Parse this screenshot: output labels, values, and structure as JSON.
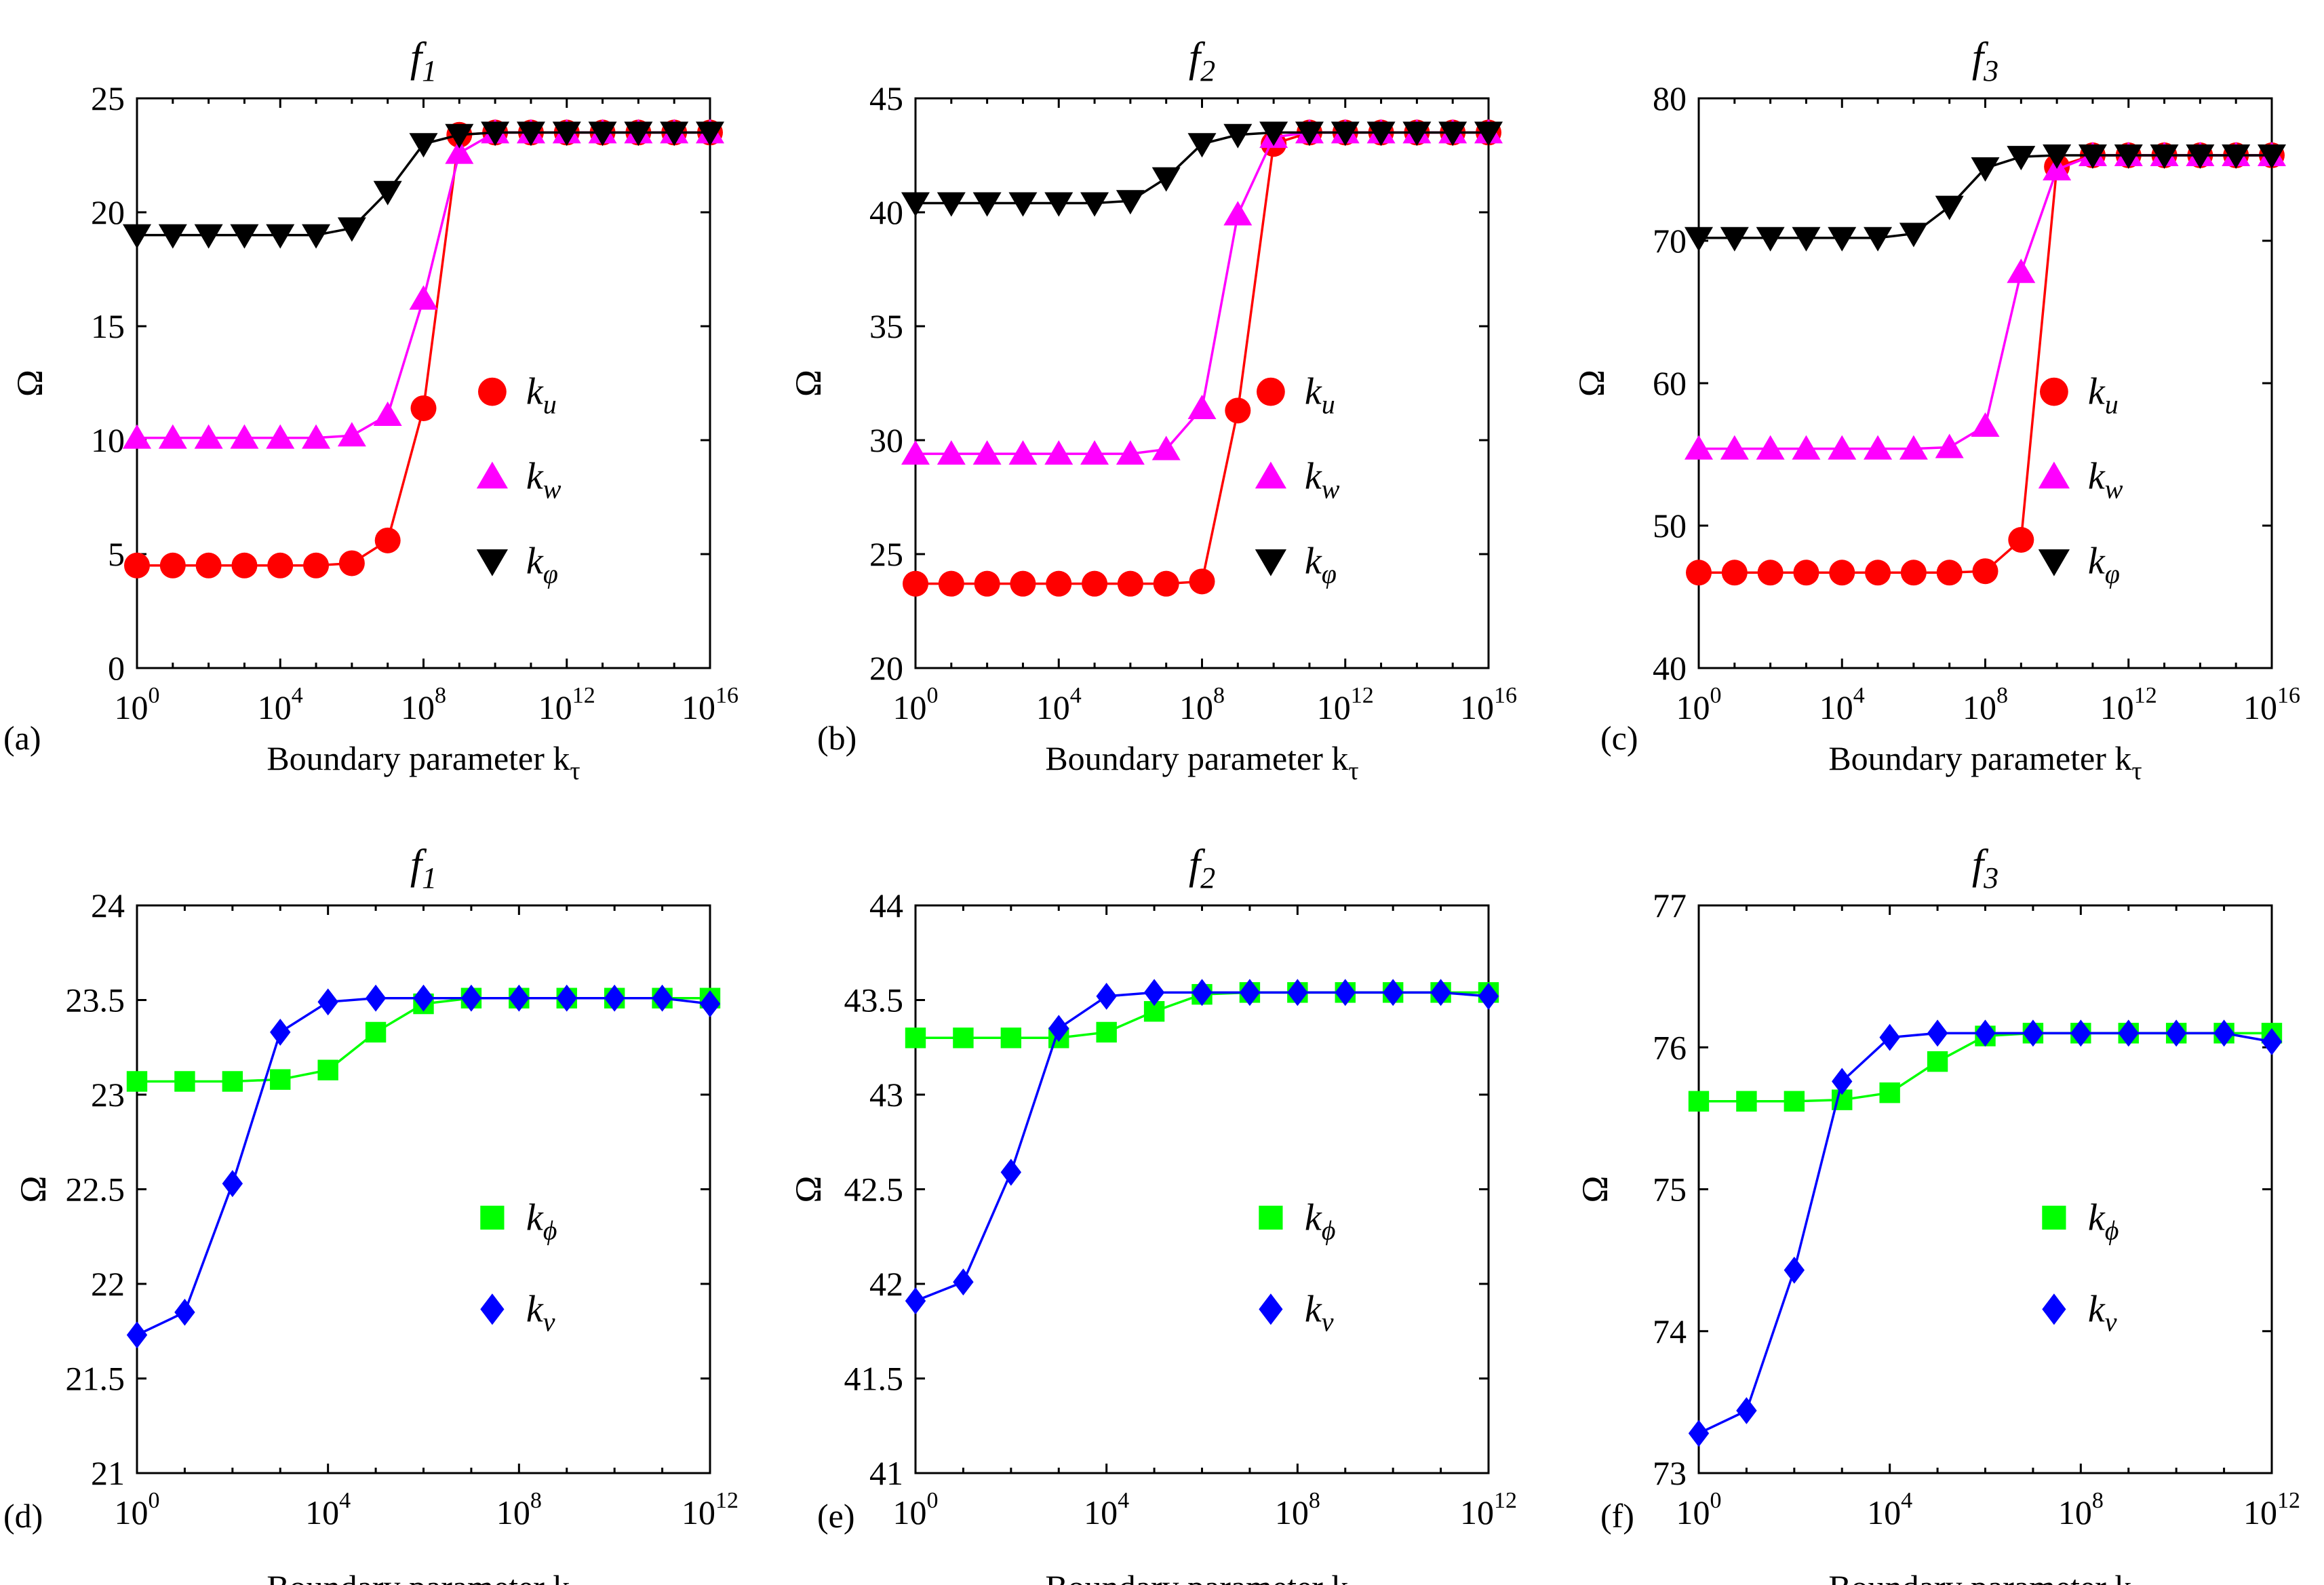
{
  "chart_data": [
    {
      "type": "line",
      "panel_label": "(a)",
      "title": "f",
      "title_sub": "1",
      "xlabel": "Boundary parameter k",
      "xlabel_sub": "τ",
      "ylabel": "Ω",
      "xscale": "log",
      "xlim_exp": [
        0,
        16
      ],
      "ylim": [
        0,
        25
      ],
      "xticks": [
        0,
        4,
        8,
        12,
        16
      ],
      "yticks": [
        0,
        5,
        10,
        15,
        20,
        25
      ],
      "legend_position": "center-right",
      "series": [
        {
          "name": "k",
          "sub": "u",
          "color": "#ff0000",
          "marker": "circle",
          "x_exp": [
            0,
            1,
            2,
            3,
            4,
            5,
            6,
            7,
            8,
            9,
            10,
            11,
            12,
            13,
            14,
            15,
            16
          ],
          "values": [
            4.5,
            4.5,
            4.5,
            4.5,
            4.5,
            4.5,
            4.6,
            5.6,
            11.4,
            23.4,
            23.5,
            23.5,
            23.5,
            23.5,
            23.5,
            23.5,
            23.5
          ]
        },
        {
          "name": "k",
          "sub": "w",
          "color": "#ff00ff",
          "marker": "triangle-up",
          "x_exp": [
            0,
            1,
            2,
            3,
            4,
            5,
            6,
            7,
            8,
            9,
            10,
            11,
            12,
            13,
            14,
            15,
            16
          ],
          "values": [
            10.1,
            10.1,
            10.1,
            10.1,
            10.1,
            10.1,
            10.2,
            11.1,
            16.2,
            22.6,
            23.5,
            23.5,
            23.5,
            23.5,
            23.5,
            23.5,
            23.5
          ]
        },
        {
          "name": "k",
          "sub": "φ",
          "color": "#000000",
          "marker": "triangle-down",
          "x_exp": [
            0,
            1,
            2,
            3,
            4,
            5,
            6,
            7,
            8,
            9,
            10,
            11,
            12,
            13,
            14,
            15,
            16
          ],
          "values": [
            19.0,
            19.0,
            19.0,
            19.0,
            19.0,
            19.0,
            19.3,
            20.9,
            23.0,
            23.4,
            23.5,
            23.5,
            23.5,
            23.5,
            23.5,
            23.5,
            23.5
          ]
        }
      ]
    },
    {
      "type": "line",
      "panel_label": "(b)",
      "title": "f",
      "title_sub": "2",
      "xlabel": "Boundary parameter k",
      "xlabel_sub": "τ",
      "ylabel": "Ω",
      "xscale": "log",
      "xlim_exp": [
        0,
        16
      ],
      "ylim": [
        20,
        45
      ],
      "xticks": [
        0,
        4,
        8,
        12,
        16
      ],
      "yticks": [
        20,
        25,
        30,
        35,
        40,
        45
      ],
      "legend_position": "center-right",
      "series": [
        {
          "name": "k",
          "sub": "u",
          "color": "#ff0000",
          "marker": "circle",
          "x_exp": [
            0,
            1,
            2,
            3,
            4,
            5,
            6,
            7,
            8,
            9,
            10,
            11,
            12,
            13,
            14,
            15,
            16
          ],
          "values": [
            23.7,
            23.7,
            23.7,
            23.7,
            23.7,
            23.7,
            23.7,
            23.7,
            23.8,
            31.3,
            43.0,
            43.5,
            43.5,
            43.5,
            43.5,
            43.5,
            43.5
          ]
        },
        {
          "name": "k",
          "sub": "w",
          "color": "#ff00ff",
          "marker": "triangle-up",
          "x_exp": [
            0,
            1,
            2,
            3,
            4,
            5,
            6,
            7,
            8,
            9,
            10,
            11,
            12,
            13,
            14,
            15,
            16
          ],
          "values": [
            29.4,
            29.4,
            29.4,
            29.4,
            29.4,
            29.4,
            29.4,
            29.6,
            31.4,
            39.9,
            43.3,
            43.5,
            43.5,
            43.5,
            43.5,
            43.5,
            43.5
          ]
        },
        {
          "name": "k",
          "sub": "φ",
          "color": "#000000",
          "marker": "triangle-down",
          "x_exp": [
            0,
            1,
            2,
            3,
            4,
            5,
            6,
            7,
            8,
            9,
            10,
            11,
            12,
            13,
            14,
            15,
            16
          ],
          "values": [
            40.4,
            40.4,
            40.4,
            40.4,
            40.4,
            40.4,
            40.5,
            41.5,
            43.0,
            43.4,
            43.5,
            43.5,
            43.5,
            43.5,
            43.5,
            43.5,
            43.5
          ]
        }
      ]
    },
    {
      "type": "line",
      "panel_label": "(c)",
      "title": "f",
      "title_sub": "3",
      "xlabel": "Boundary parameter k",
      "xlabel_sub": "τ",
      "ylabel": "Ω",
      "xscale": "log",
      "xlim_exp": [
        0,
        16
      ],
      "ylim": [
        40,
        80
      ],
      "xticks": [
        0,
        4,
        8,
        12,
        16
      ],
      "yticks": [
        40,
        50,
        60,
        70,
        80
      ],
      "legend_position": "center-right",
      "series": [
        {
          "name": "k",
          "sub": "u",
          "color": "#ff0000",
          "marker": "circle",
          "x_exp": [
            0,
            1,
            2,
            3,
            4,
            5,
            6,
            7,
            8,
            9,
            10,
            11,
            12,
            13,
            14,
            15,
            16
          ],
          "values": [
            46.7,
            46.7,
            46.7,
            46.7,
            46.7,
            46.7,
            46.7,
            46.7,
            46.8,
            49.0,
            75.2,
            76.0,
            76.0,
            76.0,
            76.0,
            76.0,
            76.0
          ]
        },
        {
          "name": "k",
          "sub": "w",
          "color": "#ff00ff",
          "marker": "triangle-up",
          "x_exp": [
            0,
            1,
            2,
            3,
            4,
            5,
            6,
            7,
            8,
            9,
            10,
            11,
            12,
            13,
            14,
            15,
            16
          ],
          "values": [
            55.4,
            55.4,
            55.4,
            55.4,
            55.4,
            55.4,
            55.4,
            55.5,
            57.0,
            67.8,
            75.0,
            76.0,
            76.0,
            76.0,
            76.0,
            76.0,
            76.0
          ]
        },
        {
          "name": "k",
          "sub": "φ",
          "color": "#000000",
          "marker": "triangle-down",
          "x_exp": [
            0,
            1,
            2,
            3,
            4,
            5,
            6,
            7,
            8,
            9,
            10,
            11,
            12,
            13,
            14,
            15,
            16
          ],
          "values": [
            70.2,
            70.2,
            70.2,
            70.2,
            70.2,
            70.2,
            70.5,
            72.4,
            75.1,
            75.9,
            76.0,
            76.0,
            76.0,
            76.0,
            76.0,
            76.0,
            76.0
          ]
        }
      ]
    },
    {
      "type": "line",
      "panel_label": "(d)",
      "title": "f",
      "title_sub": "1",
      "xlabel": "Boundary parameter k",
      "xlabel_sub": "τ",
      "ylabel": "Ω",
      "xscale": "log",
      "xlim_exp": [
        0,
        12
      ],
      "ylim": [
        21,
        24
      ],
      "xticks": [
        0,
        4,
        8,
        12
      ],
      "yticks": [
        21,
        21.5,
        22,
        22.5,
        23,
        23.5,
        24
      ],
      "legend_position": "center-right",
      "series": [
        {
          "name": "k",
          "sub": "ϕ",
          "color": "#00ff00",
          "marker": "square",
          "x_exp": [
            0,
            1,
            2,
            3,
            4,
            5,
            6,
            7,
            8,
            9,
            10,
            11,
            12
          ],
          "values": [
            23.07,
            23.07,
            23.07,
            23.08,
            23.13,
            23.33,
            23.48,
            23.51,
            23.51,
            23.51,
            23.51,
            23.51,
            23.51
          ]
        },
        {
          "name": "k",
          "sub": "ν",
          "color": "#0000ff",
          "marker": "diamond",
          "x_exp": [
            0,
            1,
            2,
            3,
            4,
            5,
            6,
            7,
            8,
            9,
            10,
            11,
            12
          ],
          "values": [
            21.73,
            21.85,
            22.53,
            23.33,
            23.49,
            23.51,
            23.51,
            23.51,
            23.51,
            23.51,
            23.51,
            23.51,
            23.48
          ]
        }
      ]
    },
    {
      "type": "line",
      "panel_label": "(e)",
      "title": "f",
      "title_sub": "2",
      "xlabel": "Boundary parameter k",
      "xlabel_sub": "τ",
      "ylabel": "Ω",
      "xscale": "log",
      "xlim_exp": [
        0,
        12
      ],
      "ylim": [
        41,
        44
      ],
      "xticks": [
        0,
        4,
        8,
        12
      ],
      "yticks": [
        41,
        41.5,
        42,
        42.5,
        43,
        43.5,
        44
      ],
      "legend_position": "center-right",
      "series": [
        {
          "name": "k",
          "sub": "ϕ",
          "color": "#00ff00",
          "marker": "square",
          "x_exp": [
            0,
            1,
            2,
            3,
            4,
            5,
            6,
            7,
            8,
            9,
            10,
            11,
            12
          ],
          "values": [
            43.3,
            43.3,
            43.3,
            43.3,
            43.33,
            43.44,
            43.53,
            43.54,
            43.54,
            43.54,
            43.54,
            43.54,
            43.54
          ]
        },
        {
          "name": "k",
          "sub": "ν",
          "color": "#0000ff",
          "marker": "diamond",
          "x_exp": [
            0,
            1,
            2,
            3,
            4,
            5,
            6,
            7,
            8,
            9,
            10,
            11,
            12
          ],
          "values": [
            41.91,
            42.01,
            42.59,
            43.35,
            43.52,
            43.54,
            43.54,
            43.54,
            43.54,
            43.54,
            43.54,
            43.54,
            43.52
          ]
        }
      ]
    },
    {
      "type": "line",
      "panel_label": "(f)",
      "title": "f",
      "title_sub": "3",
      "xlabel": "Boundary parameter k",
      "xlabel_sub": "τ",
      "ylabel": "Ω",
      "xscale": "log",
      "xlim_exp": [
        0,
        12
      ],
      "ylim": [
        73,
        77
      ],
      "xticks": [
        0,
        4,
        8,
        12
      ],
      "yticks": [
        73,
        74,
        75,
        76,
        77
      ],
      "legend_position": "center-right",
      "series": [
        {
          "name": "k",
          "sub": "ϕ",
          "color": "#00ff00",
          "marker": "square",
          "x_exp": [
            0,
            1,
            2,
            3,
            4,
            5,
            6,
            7,
            8,
            9,
            10,
            11,
            12
          ],
          "values": [
            75.62,
            75.62,
            75.62,
            75.63,
            75.68,
            75.9,
            76.08,
            76.1,
            76.1,
            76.1,
            76.1,
            76.1,
            76.1
          ]
        },
        {
          "name": "k",
          "sub": "ν",
          "color": "#0000ff",
          "marker": "diamond",
          "x_exp": [
            0,
            1,
            2,
            3,
            4,
            5,
            6,
            7,
            8,
            9,
            10,
            11,
            12
          ],
          "values": [
            73.28,
            73.44,
            74.43,
            75.76,
            76.07,
            76.1,
            76.1,
            76.1,
            76.1,
            76.1,
            76.1,
            76.1,
            76.04
          ]
        }
      ]
    }
  ]
}
